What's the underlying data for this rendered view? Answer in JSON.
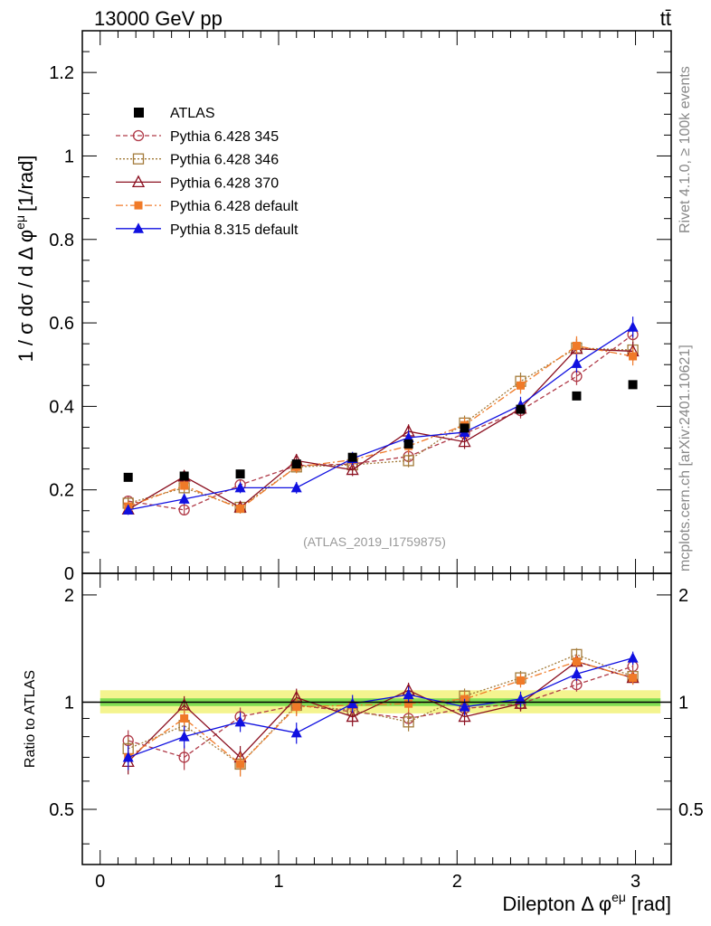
{
  "header": {
    "left": "13000 GeV pp",
    "right": "tt̄"
  },
  "watermark": "(ATLAS_2019_I1759875)",
  "side_labels": {
    "rivet": "Rivet 4.1.0, ≥ 100k events",
    "mcplots": "mcplots.cern.ch [arXiv:2401.10621]"
  },
  "colors": {
    "atlas": "#000000",
    "p345": "#b03a48",
    "p346": "#a37b3a",
    "p370": "#8b1020",
    "p6def": "#f07a28",
    "p8def": "#1010e0",
    "band_inner": "#22cc22",
    "band_outer": "#f0f060"
  },
  "chart_data": {
    "type": "scatter",
    "title": "",
    "xlabel": "Dilepton Δ φ",
    "xlabel_sup": "eμ",
    "xlabel_unit": "[rad]",
    "ylabel": "1 / σ  dσ / d Δ φ",
    "ylabel_sup": "eμ",
    "ylabel_unit": "[1/rad]",
    "ratio_ylabel": "Ratio to ATLAS",
    "xlim": [
      -0.1,
      3.2
    ],
    "ylim": [
      0,
      1.3
    ],
    "ratio_ylim": [
      0.35,
      2.3
    ],
    "xticks": [
      0,
      1,
      2,
      3
    ],
    "xtick_labels": [
      "0",
      "1",
      "2",
      "3"
    ],
    "yticks": [
      0.2,
      0.4,
      0.6,
      0.8,
      1,
      1.2
    ],
    "ytick_labels": [
      "0.2",
      "0.4",
      "0.6",
      "0.8",
      "1",
      "1.2"
    ],
    "ratio_yticks": [
      0.5,
      1,
      2
    ],
    "ratio_ytick_labels": [
      "0.5",
      "1",
      "2"
    ],
    "x": [
      0.157,
      0.471,
      0.785,
      1.1,
      1.414,
      1.728,
      2.042,
      2.356,
      2.67,
      2.985
    ],
    "legend_position": "top-left",
    "reference": {
      "name": "ATLAS",
      "values": [
        0.23,
        0.233,
        0.238,
        0.262,
        0.278,
        0.31,
        0.348,
        0.393,
        0.425,
        0.452
      ]
    },
    "series": [
      {
        "name": "Pythia 6.428 345",
        "color_key": "p345",
        "marker": "circle-open",
        "dash": "5,3",
        "values": [
          0.173,
          0.152,
          0.212,
          0.258,
          0.262,
          0.28,
          0.335,
          0.39,
          0.472,
          0.572
        ],
        "errors": [
          0.012,
          0.012,
          0.013,
          0.015,
          0.015,
          0.016,
          0.017,
          0.019,
          0.021,
          0.023
        ],
        "ratio": [
          0.78,
          0.7,
          0.91,
          0.98,
          0.94,
          0.9,
          0.96,
          0.99,
          1.12,
          1.26
        ]
      },
      {
        "name": "Pythia 6.428 346",
        "color_key": "p346",
        "marker": "square-open",
        "dash": "2,2",
        "values": [
          0.168,
          0.205,
          0.158,
          0.255,
          0.26,
          0.27,
          0.36,
          0.46,
          0.54,
          0.535
        ],
        "errors": [
          0.012,
          0.013,
          0.012,
          0.015,
          0.015,
          0.016,
          0.018,
          0.021,
          0.023,
          0.023
        ],
        "ratio": [
          0.74,
          0.86,
          0.67,
          0.98,
          0.95,
          0.88,
          1.04,
          1.17,
          1.36,
          1.18
        ]
      },
      {
        "name": "Pythia 6.428 370",
        "color_key": "p370",
        "marker": "triangle-open",
        "dash": "",
        "values": [
          0.153,
          0.232,
          0.158,
          0.27,
          0.248,
          0.34,
          0.315,
          0.395,
          0.538,
          0.532
        ],
        "errors": [
          0.012,
          0.014,
          0.012,
          0.016,
          0.015,
          0.017,
          0.017,
          0.019,
          0.023,
          0.023
        ],
        "ratio": [
          0.68,
          0.98,
          0.7,
          1.03,
          0.91,
          1.08,
          0.91,
          0.99,
          1.3,
          1.17
        ]
      },
      {
        "name": "Pythia 6.428 default",
        "color_key": "p6def",
        "marker": "square-filled",
        "dash": "8,3,2,3",
        "values": [
          0.16,
          0.21,
          0.155,
          0.255,
          0.272,
          0.305,
          0.355,
          0.45,
          0.545,
          0.52
        ],
        "errors": [
          0.012,
          0.013,
          0.012,
          0.015,
          0.015,
          0.016,
          0.018,
          0.02,
          0.023,
          0.022
        ],
        "ratio": [
          0.7,
          0.9,
          0.67,
          0.97,
          0.98,
          0.99,
          1.02,
          1.15,
          1.3,
          1.17
        ]
      },
      {
        "name": "Pythia 8.315 default",
        "color_key": "p8def",
        "marker": "triangle-filled",
        "dash": "",
        "values": [
          0.152,
          0.178,
          0.205,
          0.205,
          0.275,
          0.325,
          0.338,
          0.403,
          0.503,
          0.59
        ],
        "errors": [
          0.012,
          0.013,
          0.013,
          0.014,
          0.016,
          0.017,
          0.018,
          0.02,
          0.022,
          0.025
        ],
        "ratio": [
          0.7,
          0.8,
          0.88,
          0.82,
          0.99,
          1.05,
          0.97,
          1.02,
          1.2,
          1.33
        ]
      }
    ]
  }
}
